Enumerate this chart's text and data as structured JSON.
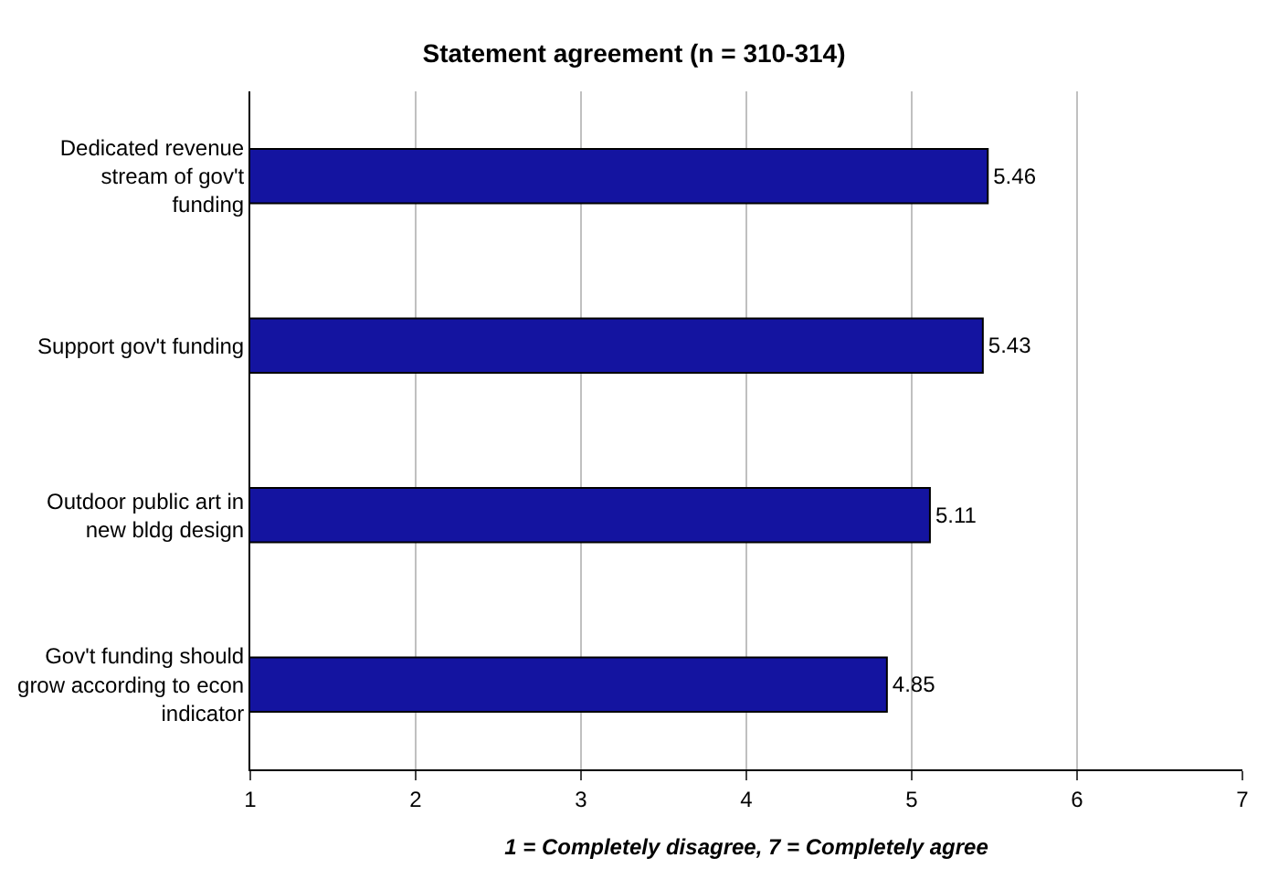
{
  "chart_data": {
    "type": "bar",
    "orientation": "horizontal",
    "title": "Statement agreement (n = 310-314)",
    "xlabel": "1 = Completely disagree, 7 = Completely agree",
    "categories": [
      "Dedicated revenue stream of gov't funding",
      "Support gov't funding",
      "Outdoor public art in new bldg design",
      "Gov't funding should grow according to econ indicator"
    ],
    "values": [
      5.46,
      5.43,
      5.11,
      4.85
    ],
    "color": "#1414a0",
    "xlim": [
      1,
      7
    ],
    "xticks": [
      1,
      2,
      3,
      4,
      5,
      6,
      7
    ],
    "grid": "x",
    "data_labels": true
  }
}
